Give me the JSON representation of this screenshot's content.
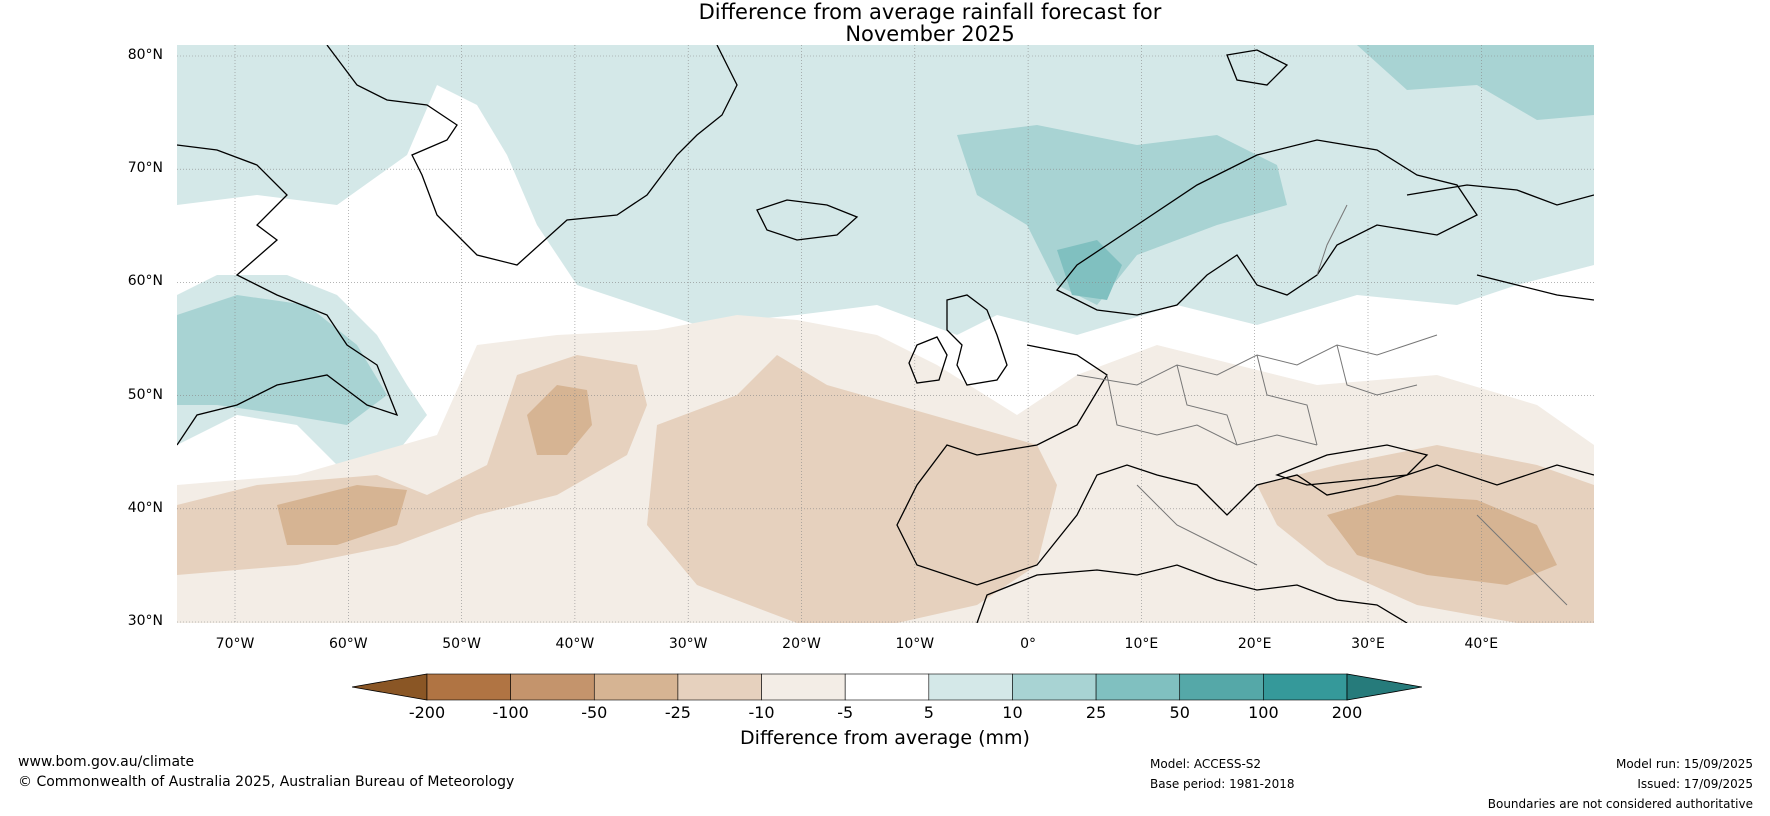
{
  "title": {
    "line1": "Difference from average rainfall forecast for",
    "line2": "November 2025"
  },
  "lat_labels": [
    "80°N",
    "70°N",
    "60°N",
    "50°N",
    "40°N",
    "30°N"
  ],
  "lon_labels": [
    "70°W",
    "60°W",
    "50°W",
    "40°W",
    "30°W",
    "20°W",
    "10°W",
    "0°",
    "10°E",
    "20°E",
    "30°E",
    "40°E"
  ],
  "colorbar": {
    "tick_labels": [
      "-200",
      "-100",
      "-50",
      "-25",
      "-10",
      "-5",
      "5",
      "10",
      "25",
      "50",
      "100",
      "200"
    ],
    "colors": [
      "#8a5625",
      "#b07443",
      "#c4946c",
      "#d6b493",
      "#e6d1be",
      "#f3ede6",
      "#ffffff",
      "#d4e8e8",
      "#a8d3d3",
      "#80c0c0",
      "#55a8a8",
      "#35999a",
      "#267b7b"
    ],
    "label": "Difference from average (mm)"
  },
  "map_colors": {
    "dry1": "#f3ede6",
    "dry2": "#e6d1be",
    "dry3": "#d6b493",
    "wet1": "#d4e8e8",
    "wet2": "#a8d3d3",
    "wet3": "#80c0c0"
  },
  "footer": {
    "website": "www.bom.gov.au/climate",
    "copyright": "© Commonwealth of Australia 2025, Australian Bureau of Meteorology",
    "model": "Model: ACCESS-S2",
    "base_period": "Base period: 1981-2018",
    "model_run": "Model run: 15/09/2025",
    "issued": "Issued: 17/09/2025",
    "disclaimer": "Boundaries are not considered authoritative"
  }
}
